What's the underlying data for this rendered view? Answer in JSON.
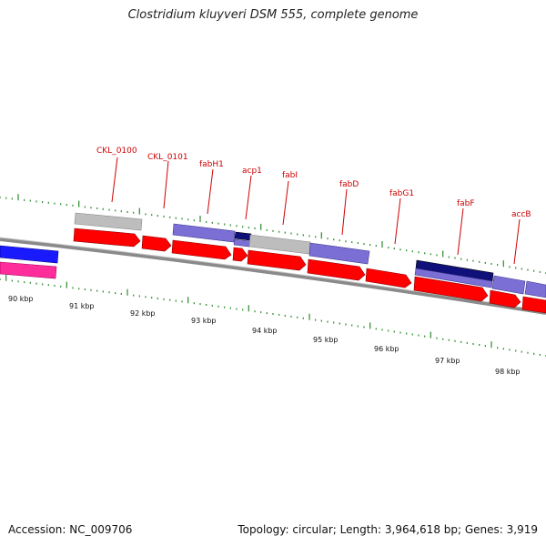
{
  "title": "Clostridium kluyveri DSM 555, complete genome",
  "footer": {
    "accession": "Accession: NC_009706",
    "summary": "Topology: circular; Length: 3,964,618 bp; Genes: 3,919"
  },
  "colors": {
    "backbone": "#8a8a8a",
    "cds": "#ff0000",
    "gene_grey": "#bdbdbd",
    "gene_purple": "#7b6fd6",
    "gene_navy": "#10107a",
    "gene_blue": "#1a1aff",
    "gene_pink": "#ff2d9b",
    "label": "#cc0000",
    "tick": "#2a8a2a"
  },
  "scale": {
    "labels": [
      "90 kbp",
      "91 kbp",
      "92 kbp",
      "93 kbp",
      "94 kbp",
      "95 kbp",
      "96 kbp",
      "97 kbp",
      "98 kbp"
    ]
  },
  "gene_labels": [
    "CKL_0100",
    "CKL_0101",
    "fabH1",
    "acp1",
    "fabI",
    "fabD",
    "fabG1",
    "fabF",
    "accB"
  ]
}
